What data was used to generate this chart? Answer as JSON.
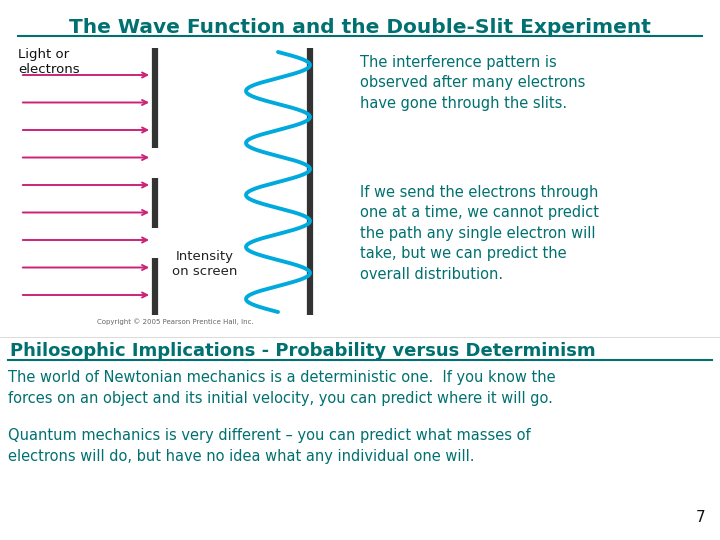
{
  "background_color": "#ffffff",
  "title": "The Wave Function and the Double-Slit Experiment",
  "title_color": "#007070",
  "title_fontsize": 14.5,
  "section2_title": "Philosophic Implications - Probability versus Determinism",
  "section2_color": "#007070",
  "section2_fontsize": 13,
  "text_color": "#007070",
  "body_text_color": "#007070",
  "label_light_electrons": "Light or\nelectrons",
  "label_intensity": "Intensity\non screen",
  "label_copyright": "Copyright © 2005 Pearson Prentice Hall, Inc.",
  "text1": "The interference pattern is\nobserved after many electrons\nhave gone through the slits.",
  "text2": "If we send the electrons through\none at a time, we cannot predict\nthe path any single electron will\ntake, but we can predict the\noverall distribution.",
  "text3": "The world of Newtonian mechanics is a deterministic one.  If you know the\nforces on an object and its initial velocity, you can predict where it will go.",
  "text4": "Quantum mechanics is very different – you can predict what masses of\nelectrons will do, but have no idea what any individual one will.",
  "page_number": "7",
  "arrow_color": "#cc2277",
  "wave_color": "#00aadd",
  "barrier_color": "#333333"
}
